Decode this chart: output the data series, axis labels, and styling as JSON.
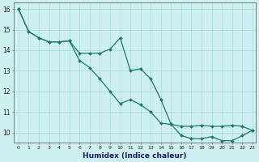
{
  "xlabel": "Humidex (Indice chaleur)",
  "bg_color": "#cff0f0",
  "line_color": "#1a7a6e",
  "marker_color": "#1a7a6e",
  "grid_color": "#aadddd",
  "x_min": -0.5,
  "x_max": 23.3,
  "y_min": 9.5,
  "y_max": 16.3,
  "series1_x": [
    0,
    1,
    2,
    3,
    4,
    5,
    6,
    7,
    8,
    9,
    10,
    11,
    12,
    13,
    14,
    15,
    16,
    17,
    18,
    19,
    20,
    21,
    22,
    23
  ],
  "series1_y": [
    16.0,
    14.9,
    14.6,
    14.4,
    14.4,
    14.45,
    13.85,
    13.85,
    13.85,
    14.05,
    14.6,
    13.0,
    13.1,
    12.6,
    11.6,
    10.4,
    9.85,
    9.7,
    9.7,
    9.8,
    9.6,
    9.6,
    9.85,
    10.1
  ],
  "series2_x": [
    0,
    1,
    2,
    3,
    4,
    5,
    6,
    7,
    8,
    9,
    10,
    11,
    12,
    13,
    14,
    15,
    16,
    17,
    18,
    19,
    20,
    21,
    22,
    23
  ],
  "series2_y": [
    16.0,
    14.9,
    14.6,
    14.4,
    14.4,
    14.45,
    13.5,
    13.15,
    12.6,
    12.0,
    11.4,
    11.6,
    11.35,
    11.0,
    10.45,
    10.4,
    10.3,
    10.3,
    10.35,
    10.3,
    10.3,
    10.35,
    10.3,
    10.1
  ],
  "yticks": [
    10,
    11,
    12,
    13,
    14,
    15,
    16
  ],
  "xticks": [
    0,
    1,
    2,
    3,
    4,
    5,
    6,
    7,
    8,
    9,
    10,
    11,
    12,
    13,
    14,
    15,
    16,
    17,
    18,
    19,
    20,
    21,
    22,
    23
  ]
}
